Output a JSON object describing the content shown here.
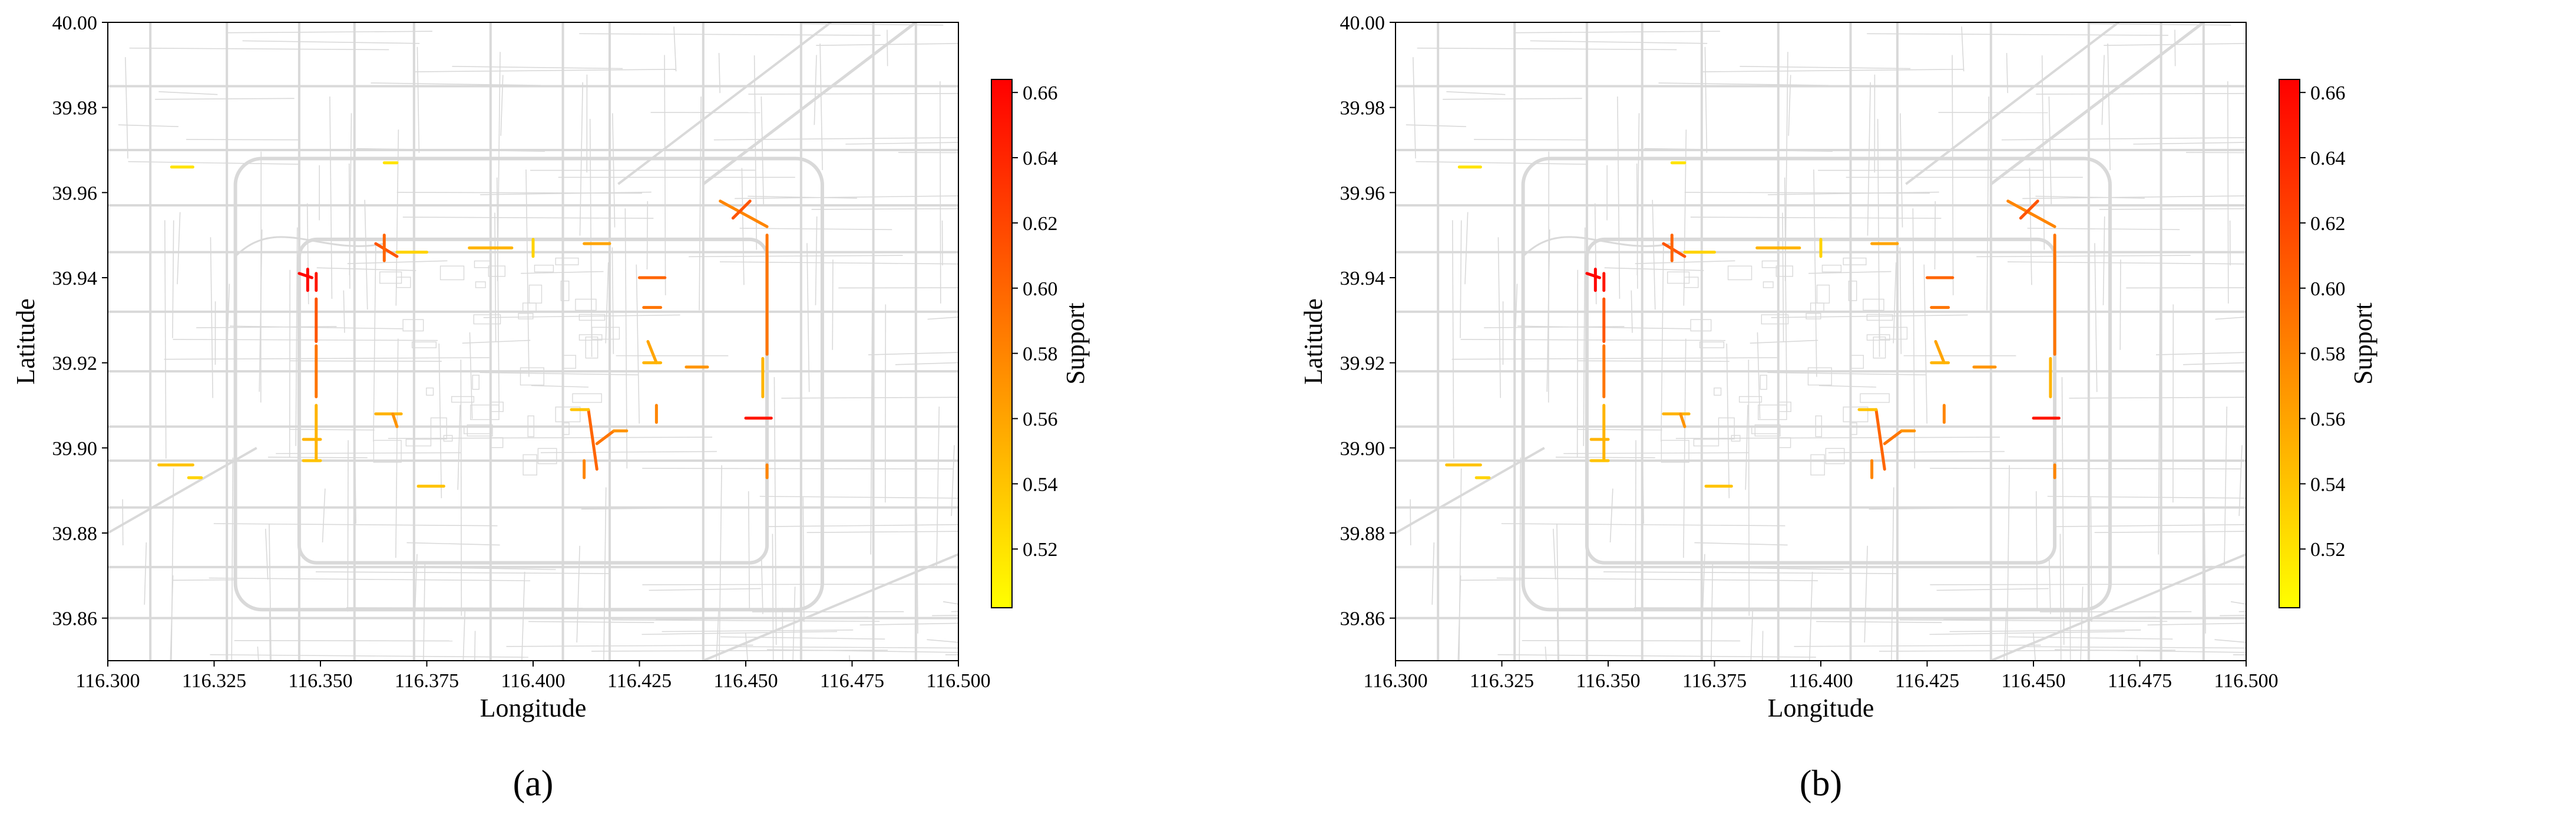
{
  "panels": [
    {
      "caption": "(a)",
      "xlabel": "Longitude",
      "ylabel": "Latitude",
      "xticks": [
        "116.300",
        "116.325",
        "116.350",
        "116.375",
        "116.400",
        "116.425",
        "116.450",
        "116.475",
        "116.500"
      ],
      "yticks": [
        "40.00",
        "39.98",
        "39.96",
        "39.94",
        "39.92",
        "39.90",
        "39.88",
        "39.86"
      ],
      "colorbar_label": "Support",
      "colorbar_ticks": [
        "0.66",
        "0.64",
        "0.62",
        "0.60",
        "0.58",
        "0.56",
        "0.54",
        "0.52"
      ],
      "colorbar_range": [
        0.502,
        0.664
      ]
    },
    {
      "caption": "(b)",
      "xlabel": "Longitude",
      "ylabel": "Latitude",
      "xticks": [
        "116.300",
        "116.325",
        "116.350",
        "116.375",
        "116.400",
        "116.425",
        "116.450",
        "116.475",
        "116.500"
      ],
      "yticks": [
        "40.00",
        "39.98",
        "39.96",
        "39.94",
        "39.92",
        "39.90",
        "39.88",
        "39.86"
      ],
      "colorbar_label": "Support",
      "colorbar_ticks": [
        "0.66",
        "0.64",
        "0.62",
        "0.60",
        "0.58",
        "0.56",
        "0.54",
        "0.52"
      ],
      "colorbar_range": [
        0.502,
        0.664
      ]
    }
  ],
  "chart_data": {
    "type": "map",
    "xlim": [
      116.3,
      116.5
    ],
    "ylim": [
      39.85,
      40.0
    ],
    "colormap": [
      "#ffff00",
      "#ff8000",
      "#ff0000"
    ],
    "basemap_color": "#d9d9d9",
    "highlighted_segments": [
      {
        "lon": [
          116.345,
          116.348
        ],
        "lat": [
          39.941,
          39.94
        ],
        "support": 0.66
      },
      {
        "lon": [
          116.347,
          116.347
        ],
        "lat": [
          39.942,
          39.937
        ],
        "support": 0.66
      },
      {
        "lon": [
          116.349,
          116.349
        ],
        "lat": [
          39.941,
          39.937
        ],
        "support": 0.65
      },
      {
        "lon": [
          116.349,
          116.349
        ],
        "lat": [
          39.935,
          39.925
        ],
        "support": 0.61
      },
      {
        "lon": [
          116.349,
          116.349
        ],
        "lat": [
          39.924,
          39.912
        ],
        "support": 0.59
      },
      {
        "lon": [
          116.349,
          116.349
        ],
        "lat": [
          39.91,
          39.897
        ],
        "support": 0.55
      },
      {
        "lon": [
          116.346,
          116.35
        ],
        "lat": [
          39.897,
          39.897
        ],
        "support": 0.54
      },
      {
        "lon": [
          116.346,
          116.35
        ],
        "lat": [
          39.902,
          39.902
        ],
        "support": 0.55
      },
      {
        "lon": [
          116.312,
          116.32
        ],
        "lat": [
          39.896,
          39.896
        ],
        "support": 0.54
      },
      {
        "lon": [
          116.319,
          116.322
        ],
        "lat": [
          39.893,
          39.893
        ],
        "support": 0.53
      },
      {
        "lon": [
          116.315,
          116.32
        ],
        "lat": [
          39.966,
          39.966
        ],
        "support": 0.52
      },
      {
        "lon": [
          116.365,
          116.368
        ],
        "lat": [
          39.967,
          39.967
        ],
        "support": 0.52
      },
      {
        "lon": [
          116.363,
          116.368
        ],
        "lat": [
          39.948,
          39.945
        ],
        "support": 0.61
      },
      {
        "lon": [
          116.365,
          116.365
        ],
        "lat": [
          39.95,
          39.944
        ],
        "support": 0.6
      },
      {
        "lon": [
          116.368,
          116.375
        ],
        "lat": [
          39.946,
          39.946
        ],
        "support": 0.53
      },
      {
        "lon": [
          116.385,
          116.395
        ],
        "lat": [
          39.947,
          39.947
        ],
        "support": 0.55
      },
      {
        "lon": [
          116.4,
          116.4
        ],
        "lat": [
          39.949,
          39.945
        ],
        "support": 0.53
      },
      {
        "lon": [
          116.412,
          116.418
        ],
        "lat": [
          39.948,
          39.948
        ],
        "support": 0.56
      },
      {
        "lon": [
          116.425,
          116.431
        ],
        "lat": [
          39.94,
          39.94
        ],
        "support": 0.6
      },
      {
        "lon": [
          116.426,
          116.43
        ],
        "lat": [
          39.933,
          39.933
        ],
        "support": 0.59
      },
      {
        "lon": [
          116.427,
          116.429
        ],
        "lat": [
          39.925,
          39.92
        ],
        "support": 0.56
      },
      {
        "lon": [
          116.426,
          116.43
        ],
        "lat": [
          39.92,
          39.92
        ],
        "support": 0.55
      },
      {
        "lon": [
          116.444,
          116.455
        ],
        "lat": [
          39.958,
          39.952
        ],
        "support": 0.58
      },
      {
        "lon": [
          116.447,
          116.451
        ],
        "lat": [
          39.954,
          39.958
        ],
        "support": 0.61
      },
      {
        "lon": [
          116.455,
          116.455
        ],
        "lat": [
          39.95,
          39.922
        ],
        "support": 0.59
      },
      {
        "lon": [
          116.454,
          116.454
        ],
        "lat": [
          39.921,
          39.912
        ],
        "support": 0.55
      },
      {
        "lon": [
          116.436,
          116.441
        ],
        "lat": [
          39.919,
          39.919
        ],
        "support": 0.57
      },
      {
        "lon": [
          116.45,
          116.456
        ],
        "lat": [
          39.907,
          39.907
        ],
        "support": 0.65
      },
      {
        "lon": [
          116.455,
          116.455
        ],
        "lat": [
          39.896,
          39.893
        ],
        "support": 0.58
      },
      {
        "lon": [
          116.413,
          116.415
        ],
        "lat": [
          39.909,
          39.895
        ],
        "support": 0.6
      },
      {
        "lon": [
          116.415,
          116.419
        ],
        "lat": [
          39.901,
          39.904
        ],
        "support": 0.59
      },
      {
        "lon": [
          116.419,
          116.422
        ],
        "lat": [
          39.904,
          39.904
        ],
        "support": 0.57
      },
      {
        "lon": [
          116.409,
          116.413
        ],
        "lat": [
          39.909,
          39.909
        ],
        "support": 0.54
      },
      {
        "lon": [
          116.412,
          116.412
        ],
        "lat": [
          39.897,
          39.893
        ],
        "support": 0.58
      },
      {
        "lon": [
          116.429,
          116.429
        ],
        "lat": [
          39.91,
          39.906
        ],
        "support": 0.58
      },
      {
        "lon": [
          116.363,
          116.369
        ],
        "lat": [
          39.908,
          39.908
        ],
        "support": 0.55
      },
      {
        "lon": [
          116.367,
          116.368
        ],
        "lat": [
          39.908,
          39.905
        ],
        "support": 0.57
      },
      {
        "lon": [
          116.373,
          116.379
        ],
        "lat": [
          39.891,
          39.891
        ],
        "support": 0.54
      }
    ]
  }
}
